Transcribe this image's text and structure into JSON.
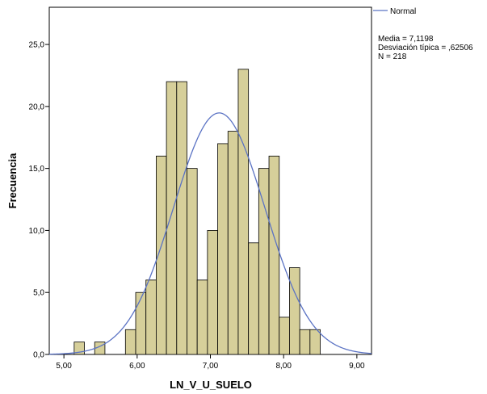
{
  "chart_data": {
    "type": "bar",
    "subtype": "histogram",
    "xlabel": "LN_V_U_SUELO",
    "ylabel": "Frecuencia",
    "xlim": [
      4.8,
      9.2
    ],
    "ylim": [
      0,
      28
    ],
    "xticks": [
      {
        "value": 5,
        "label": "5,00"
      },
      {
        "value": 6,
        "label": "6,00"
      },
      {
        "value": 7,
        "label": "7,00"
      },
      {
        "value": 8,
        "label": "8,00"
      },
      {
        "value": 9,
        "label": "9,00"
      }
    ],
    "yticks": [
      {
        "value": 0,
        "label": "0,0"
      },
      {
        "value": 5,
        "label": "5,0"
      },
      {
        "value": 10,
        "label": "10,0"
      },
      {
        "value": 15,
        "label": "15,0"
      },
      {
        "value": 20,
        "label": "20,0"
      },
      {
        "value": 25,
        "label": "25,0"
      }
    ],
    "bar_color": "#d6cf9a",
    "bins": [
      {
        "x0": 5.14,
        "x1": 5.28,
        "count": 1
      },
      {
        "x0": 5.28,
        "x1": 5.42,
        "count": 0
      },
      {
        "x0": 5.42,
        "x1": 5.56,
        "count": 1
      },
      {
        "x0": 5.56,
        "x1": 5.7,
        "count": 0
      },
      {
        "x0": 5.7,
        "x1": 5.84,
        "count": 0
      },
      {
        "x0": 5.84,
        "x1": 5.98,
        "count": 2
      },
      {
        "x0": 5.98,
        "x1": 6.12,
        "count": 5
      },
      {
        "x0": 6.12,
        "x1": 6.26,
        "count": 6
      },
      {
        "x0": 6.26,
        "x1": 6.4,
        "count": 16
      },
      {
        "x0": 6.4,
        "x1": 6.54,
        "count": 22
      },
      {
        "x0": 6.54,
        "x1": 6.68,
        "count": 22
      },
      {
        "x0": 6.68,
        "x1": 6.82,
        "count": 15
      },
      {
        "x0": 6.82,
        "x1": 6.96,
        "count": 6
      },
      {
        "x0": 6.96,
        "x1": 7.1,
        "count": 10
      },
      {
        "x0": 7.1,
        "x1": 7.24,
        "count": 17
      },
      {
        "x0": 7.24,
        "x1": 7.38,
        "count": 18
      },
      {
        "x0": 7.38,
        "x1": 7.52,
        "count": 23
      },
      {
        "x0": 7.52,
        "x1": 7.66,
        "count": 9
      },
      {
        "x0": 7.66,
        "x1": 7.8,
        "count": 15
      },
      {
        "x0": 7.8,
        "x1": 7.94,
        "count": 16
      },
      {
        "x0": 7.94,
        "x1": 8.08,
        "count": 3
      },
      {
        "x0": 8.08,
        "x1": 8.22,
        "count": 7
      },
      {
        "x0": 8.22,
        "x1": 8.36,
        "count": 2
      },
      {
        "x0": 8.36,
        "x1": 8.5,
        "count": 2
      }
    ],
    "normal_curve": {
      "name": "Normal",
      "mean": 7.1198,
      "sd": 0.62506,
      "n": 218,
      "color": "#5b73c4"
    },
    "stats": {
      "mean_label": "Media = 7,1198",
      "sd_label": "Desviación típica = ,62506",
      "n_label": "N = 218"
    },
    "legend_position": "top-right",
    "grid": false
  }
}
